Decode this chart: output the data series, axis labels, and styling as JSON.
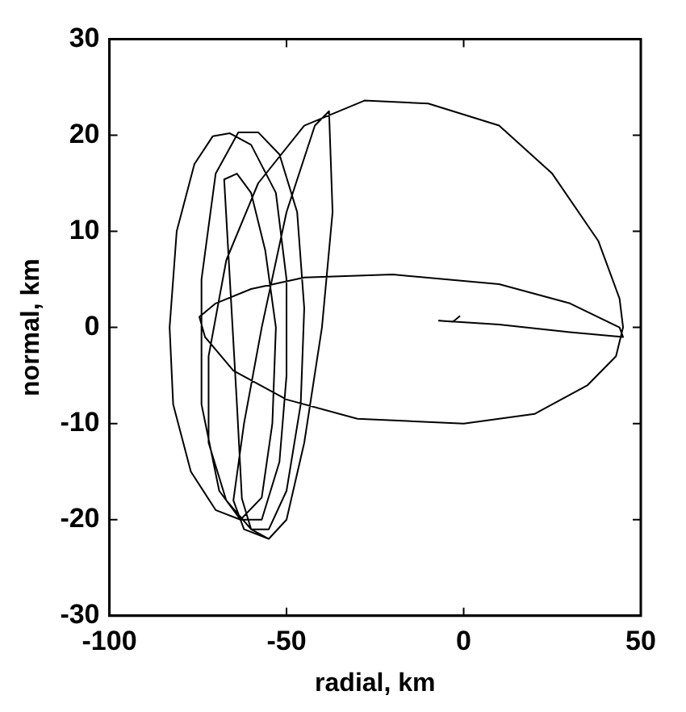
{
  "chart_data": {
    "type": "line",
    "xlabel": "radial, km",
    "ylabel": "normal, km",
    "xlim": [
      -100,
      50
    ],
    "ylim": [
      -30,
      30
    ],
    "xticks": [
      -100,
      -50,
      0,
      50
    ],
    "yticks": [
      -30,
      -20,
      -10,
      0,
      10,
      20,
      30
    ],
    "grid": false,
    "legend": false,
    "marker": "none",
    "line_style": "solid",
    "series": [
      {
        "color": "#000000",
        "x": [
          -1,
          -3,
          -7,
          10,
          30,
          45,
          44,
          30,
          10,
          -20,
          -45,
          -60,
          -70,
          -74.6,
          -73,
          -65,
          -50,
          -30,
          0,
          20,
          35,
          43,
          45,
          44,
          38,
          25,
          10,
          -10,
          -28,
          -45,
          -58,
          -67,
          -72,
          -72,
          -67,
          -60,
          -55,
          -50,
          -46,
          -45,
          -47,
          -52,
          -58,
          -63.6,
          -70,
          -74,
          -74,
          -69,
          -63,
          -57,
          -52,
          -50,
          -50,
          -53,
          -60,
          -66,
          -70.8,
          -76,
          -81,
          -83,
          -82,
          -77,
          -70,
          -63,
          -57,
          -54,
          -53,
          -56,
          -60,
          -64,
          -67.6,
          -66,
          -64,
          -62.6,
          -60,
          -55,
          -50,
          -45,
          -40,
          -37,
          -38,
          -42,
          -50,
          -57,
          -62,
          -65,
          -62,
          -55
        ],
        "values": [
          1.2,
          0.6,
          0.7,
          0.3,
          -0.5,
          -1,
          0,
          2.5,
          4.5,
          5.5,
          5.2,
          4,
          2.5,
          1.1,
          -1,
          -4.5,
          -7.5,
          -9.5,
          -10,
          -9,
          -6,
          -3,
          0,
          3,
          9,
          16,
          21,
          23.3,
          23.6,
          21,
          15,
          7,
          -3,
          -12,
          -18,
          -21,
          -21,
          -17,
          -8,
          2,
          12,
          18,
          20.3,
          20.3,
          16,
          5,
          -8,
          -17,
          -20,
          -20,
          -14,
          -5,
          5,
          14,
          19,
          20.2,
          19.9,
          17,
          10,
          0,
          -8,
          -15,
          -19,
          -20,
          -17.7,
          -10,
          0,
          8,
          14,
          16,
          15.4,
          5,
          -8,
          -17.8,
          -21,
          -22,
          -20,
          -12,
          0,
          12,
          22.5,
          21,
          12,
          0,
          -10,
          -18,
          -21,
          -22
        ]
      }
    ]
  }
}
